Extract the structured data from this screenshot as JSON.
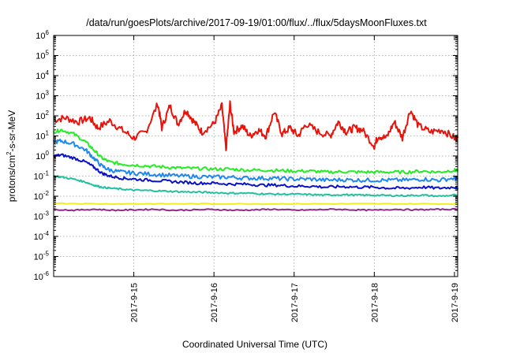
{
  "chart_data": {
    "type": "line",
    "title": "/data/run/goesPlots/archive/2017-09-19/01:00/flux/../flux/5daysMoonFluxes.txt",
    "xlabel": "Coordinated Universal Time (UTC)",
    "ylabel": "protons/cm²-s-sr-MeV",
    "ylabel_parts": {
      "before": "protons/cm",
      "sup": "2",
      "after": "-s-sr-MeV"
    },
    "y_scale": "log",
    "ylim_exponent": [
      -6,
      6
    ],
    "y_ticks": [
      {
        "base": "10",
        "exp": "-6"
      },
      {
        "base": "10",
        "exp": "-5"
      },
      {
        "base": "10",
        "exp": "-4"
      },
      {
        "base": "10",
        "exp": "-3"
      },
      {
        "base": "10",
        "exp": "-2"
      },
      {
        "base": "10",
        "exp": "-1"
      },
      {
        "base": "10",
        "exp": "0"
      },
      {
        "base": "10",
        "exp": "1"
      },
      {
        "base": "10",
        "exp": "2"
      },
      {
        "base": "10",
        "exp": "3"
      },
      {
        "base": "10",
        "exp": "4"
      },
      {
        "base": "10",
        "exp": "5"
      },
      {
        "base": "10",
        "exp": "6"
      }
    ],
    "x_range_days": [
      "2017-09-14",
      "2017-09-19 01:00"
    ],
    "x_ticks": [
      {
        "label": "2017-9-15",
        "day": 1
      },
      {
        "label": "2017-9-16",
        "day": 2
      },
      {
        "label": "2017-9-17",
        "day": 3
      },
      {
        "label": "2017-9-18",
        "day": 4
      },
      {
        "label": "2017-9-19",
        "day": 5
      }
    ],
    "x_max_day": 5.04,
    "grid": true,
    "series": [
      {
        "color": "#e8140c",
        "x": [
          0,
          0.15,
          0.3,
          0.45,
          0.55,
          0.7,
          0.85,
          1.0,
          1.15,
          1.3,
          1.35,
          1.45,
          1.55,
          1.65,
          1.75,
          1.85,
          2.0,
          2.1,
          2.15,
          2.2,
          2.25,
          2.35,
          2.45,
          2.55,
          2.65,
          2.75,
          2.85,
          2.95,
          3.05,
          3.15,
          3.3,
          3.45,
          3.55,
          3.65,
          3.75,
          3.85,
          4.0,
          4.05,
          4.15,
          4.25,
          4.35,
          4.45,
          4.55,
          4.7,
          4.85,
          5.0,
          5.04
        ],
        "values_log10": [
          1.8,
          1.9,
          1.7,
          1.9,
          1.4,
          1.75,
          1.3,
          0.9,
          1.2,
          2.6,
          1.4,
          2.5,
          1.6,
          2.3,
          1.7,
          1.2,
          1.6,
          2.5,
          0.3,
          2.6,
          1.2,
          1.5,
          1.0,
          1.3,
          1.0,
          2.2,
          1.1,
          1.4,
          1.0,
          1.6,
          1.2,
          1.0,
          1.7,
          1.2,
          1.4,
          1.3,
          0.5,
          1.0,
          0.9,
          1.7,
          0.9,
          2.3,
          1.5,
          1.2,
          1.3,
          0.9,
          0.9
        ]
      },
      {
        "color": "#22ee22",
        "x": [
          0,
          0.1,
          0.25,
          0.4,
          0.5,
          0.6,
          0.7,
          0.85,
          1.0,
          1.2,
          1.4,
          1.6,
          1.8,
          2.0,
          2.2,
          2.4,
          2.6,
          2.8,
          3.0,
          3.2,
          3.4,
          3.6,
          3.8,
          4.0,
          4.2,
          4.4,
          4.6,
          4.8,
          5.0,
          5.04
        ],
        "values_log10": [
          1.2,
          1.3,
          1.1,
          0.7,
          0.3,
          -0.1,
          -0.3,
          -0.4,
          -0.45,
          -0.5,
          -0.55,
          -0.6,
          -0.62,
          -0.65,
          -0.65,
          -0.7,
          -0.7,
          -0.72,
          -0.75,
          -0.75,
          -0.8,
          -0.78,
          -0.8,
          -0.8,
          -0.8,
          -0.8,
          -0.75,
          -0.8,
          -0.7,
          -0.75
        ]
      },
      {
        "color": "#1e88ee",
        "x": [
          0,
          0.1,
          0.25,
          0.4,
          0.5,
          0.6,
          0.7,
          0.85,
          1.0,
          1.2,
          1.4,
          1.6,
          1.8,
          2.0,
          2.2,
          2.4,
          2.6,
          2.8,
          3.0,
          3.2,
          3.4,
          3.6,
          3.8,
          4.0,
          4.2,
          4.4,
          4.6,
          4.8,
          5.0,
          5.04
        ],
        "values_log10": [
          0.7,
          0.75,
          0.6,
          0.3,
          -0.1,
          -0.5,
          -0.7,
          -0.8,
          -0.85,
          -0.9,
          -0.95,
          -1.0,
          -1.02,
          -1.05,
          -1.05,
          -1.1,
          -1.1,
          -1.12,
          -1.15,
          -1.15,
          -1.2,
          -1.18,
          -1.2,
          -1.2,
          -1.2,
          -1.2,
          -1.15,
          -1.2,
          -1.1,
          -1.15
        ]
      },
      {
        "color": "#0a12c8",
        "x": [
          0,
          0.1,
          0.25,
          0.4,
          0.5,
          0.6,
          0.7,
          0.85,
          1.0,
          1.2,
          1.4,
          1.6,
          1.8,
          2.0,
          2.2,
          2.4,
          2.6,
          2.8,
          3.0,
          3.2,
          3.4,
          3.6,
          3.8,
          4.0,
          4.2,
          4.4,
          4.6,
          4.8,
          5.0,
          5.04
        ],
        "values_log10": [
          0.0,
          0.05,
          -0.1,
          -0.3,
          -0.55,
          -0.85,
          -1.0,
          -1.1,
          -1.15,
          -1.2,
          -1.25,
          -1.3,
          -1.35,
          -1.35,
          -1.4,
          -1.4,
          -1.45,
          -1.45,
          -1.5,
          -1.5,
          -1.55,
          -1.52,
          -1.55,
          -1.55,
          -1.6,
          -1.6,
          -1.55,
          -1.6,
          -1.55,
          -1.6
        ]
      },
      {
        "color": "#20c0a0",
        "x": [
          0,
          0.1,
          0.25,
          0.4,
          0.5,
          0.6,
          0.7,
          0.85,
          1.0,
          1.2,
          1.4,
          1.6,
          1.8,
          2.0,
          2.2,
          2.4,
          2.6,
          2.8,
          3.0,
          3.2,
          3.4,
          3.6,
          3.8,
          4.0,
          4.2,
          4.4,
          4.6,
          4.8,
          5.0,
          5.04
        ],
        "values_log10": [
          -1.0,
          -1.05,
          -1.15,
          -1.3,
          -1.45,
          -1.55,
          -1.6,
          -1.65,
          -1.7,
          -1.72,
          -1.75,
          -1.78,
          -1.8,
          -1.82,
          -1.85,
          -1.85,
          -1.88,
          -1.9,
          -1.9,
          -1.92,
          -1.95,
          -1.92,
          -1.95,
          -1.95,
          -1.97,
          -1.97,
          -1.95,
          -2.0,
          -1.95,
          -2.0
        ]
      },
      {
        "color": "#f0f020",
        "x": [
          0,
          0.5,
          1.0,
          1.5,
          2.0,
          2.5,
          3.0,
          3.5,
          4.0,
          4.5,
          5.0,
          5.04
        ],
        "values_log10": [
          -2.35,
          -2.38,
          -2.38,
          -2.38,
          -2.38,
          -2.38,
          -2.38,
          -2.38,
          -2.38,
          -2.38,
          -2.38,
          -2.38
        ]
      },
      {
        "color": "#8c2c86",
        "x": [
          0,
          0.25,
          0.5,
          0.75,
          1.0,
          1.25,
          1.5,
          1.75,
          2.0,
          2.25,
          2.5,
          2.75,
          3.0,
          3.25,
          3.5,
          3.75,
          4.0,
          4.25,
          4.5,
          4.75,
          5.0,
          5.04
        ],
        "values_log10": [
          -2.65,
          -2.7,
          -2.65,
          -2.7,
          -2.68,
          -2.65,
          -2.7,
          -2.68,
          -2.66,
          -2.7,
          -2.68,
          -2.65,
          -2.7,
          -2.68,
          -2.65,
          -2.68,
          -2.7,
          -2.65,
          -2.68,
          -2.66,
          -2.65,
          -2.65
        ]
      }
    ]
  }
}
